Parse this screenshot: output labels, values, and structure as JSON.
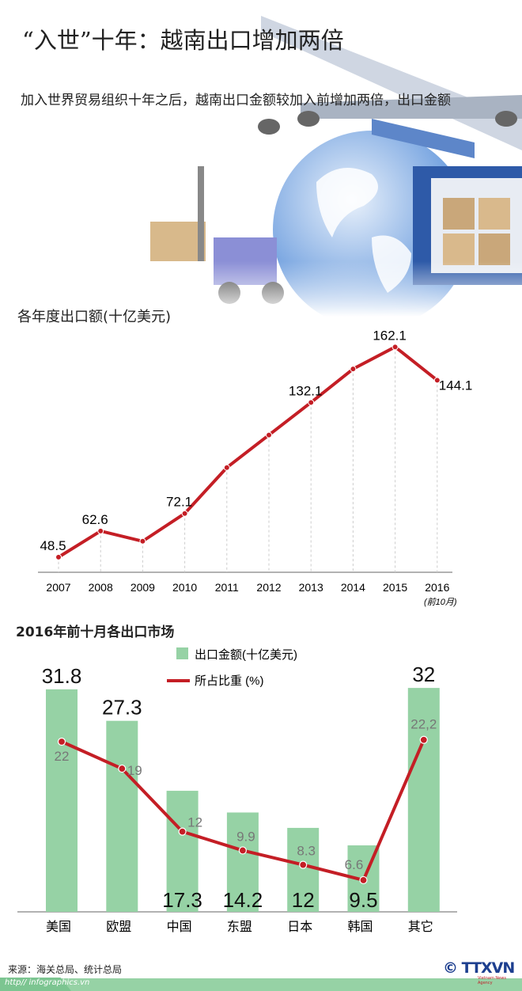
{
  "header": {
    "title": "“入世”十年：越南出口增加两倍",
    "subtitle": "加入世界贸易组织十年之后，越南出口金额较加入前增加两倍，出口金额"
  },
  "colors": {
    "line": "#c41e25",
    "bar": "#96d2a5",
    "grid": "#cccccc"
  },
  "chart_data": [
    {
      "type": "line",
      "title": "各年度出口额(十亿美元)",
      "categories": [
        "2007",
        "2008",
        "2009",
        "2010",
        "2011",
        "2012",
        "2013",
        "2014",
        "2015",
        "2016"
      ],
      "category_note": {
        "2016": "(前10月)"
      },
      "values": [
        48.5,
        62.6,
        57.1,
        72.1,
        96.9,
        114.5,
        132.1,
        150.2,
        162.1,
        144.1
      ],
      "data_labels": [
        "48.5",
        "62.6",
        "",
        "72.1",
        "",
        "",
        "132.1",
        "",
        "162.1",
        "144.1"
      ],
      "grid": "vertical dashed"
    },
    {
      "type": "bar+line",
      "title": "2016年前十月各出口市场",
      "categories": [
        "美国",
        "欧盟",
        "中国",
        "东盟",
        "日本",
        "韩国",
        "其它"
      ],
      "series": [
        {
          "name": "出口金额(十亿美元)",
          "type": "bar",
          "values": [
            31.8,
            27.3,
            17.3,
            14.2,
            12,
            9.5,
            32
          ],
          "labels": [
            "31.8",
            "27.3",
            "17.3",
            "14.2",
            "12",
            "9.5",
            "32"
          ]
        },
        {
          "name": "所占比重 (%)",
          "type": "line",
          "values": [
            22,
            19,
            12,
            9.9,
            8.3,
            6.6,
            22.2
          ],
          "labels": [
            "22",
            "19",
            "12",
            "9.9",
            "8.3",
            "6.6",
            "22,2"
          ]
        }
      ],
      "legend": "top-center"
    }
  ],
  "footer": {
    "source": "来源：海关总局、统计总局",
    "url": "http// infographics.vn",
    "logo": "© TTXVN",
    "logo_sub": "Vietnam News Agency"
  }
}
